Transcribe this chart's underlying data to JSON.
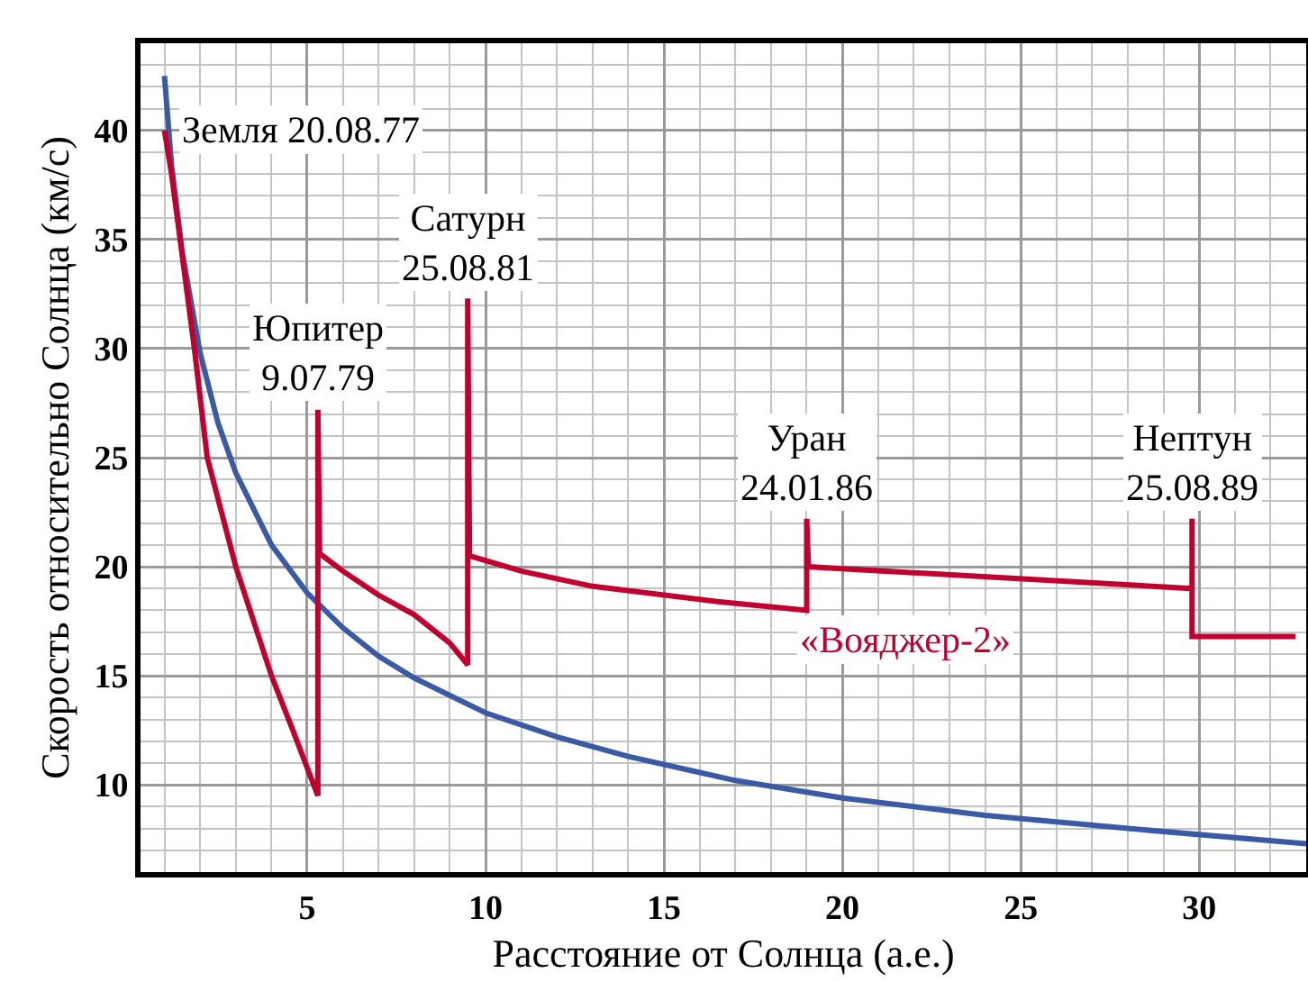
{
  "chart_data": {
    "type": "line",
    "xlabel": "Расстояние от Солнца (а.е.)",
    "ylabel": "Скорость относительно Солнца (км/с)",
    "xlim": [
      0.33,
      33
    ],
    "ylim": [
      6,
      44
    ],
    "xticks": [
      5,
      10,
      15,
      20,
      25,
      30
    ],
    "yticks": [
      10,
      15,
      20,
      25,
      30,
      35,
      40
    ],
    "grid": true,
    "line_style": "solid",
    "series": [
      {
        "color": "#3b5aa6",
        "x": [
          1.0,
          1.2,
          1.5,
          2,
          2.5,
          3,
          4,
          5,
          6,
          7,
          8,
          10,
          12,
          14,
          17,
          20,
          24,
          28,
          33
        ],
        "values": [
          42.5,
          38.4,
          34.4,
          29.8,
          26.6,
          24.3,
          21.0,
          18.8,
          17.2,
          15.9,
          14.9,
          13.3,
          12.2,
          11.3,
          10.2,
          9.4,
          8.6,
          8.0,
          7.3
        ]
      },
      {
        "name": "«Вояджер-2»",
        "color": "#c0002e",
        "x": [
          1.0,
          1.2,
          1.44,
          1.84,
          2.2,
          3.0,
          4.0,
          4.6,
          5.3,
          5.3,
          5.35,
          6,
          7,
          8,
          9,
          9.5,
          9.5,
          9.55,
          11,
          13,
          16.5,
          19,
          19,
          19.05,
          29.8,
          29.8,
          29.8,
          32.7
        ],
        "values": [
          40,
          38,
          35,
          30,
          25,
          20,
          15,
          12.5,
          9.5,
          27.2,
          20.6,
          19.8,
          18.7,
          17.8,
          16.5,
          15.5,
          32.3,
          20.5,
          19.8,
          19.1,
          18.4,
          18.0,
          22.2,
          20.0,
          19.0,
          22.2,
          16.8,
          16.8
        ]
      }
    ],
    "annotations": [
      {
        "text": "Земля 20.08.77",
        "x": 1.0,
        "y": 40
      },
      {
        "text": "Юпитер\n9.07.79",
        "x": 5.3,
        "y": 27.2
      },
      {
        "text": "Сатурн\n25.08.81",
        "x": 9.5,
        "y": 32.3
      },
      {
        "text": "Уран\n24.01.86",
        "x": 19,
        "y": 22.2
      },
      {
        "text": "Нептун\n25.08.89",
        "x": 29.8,
        "y": 22.2
      }
    ]
  }
}
